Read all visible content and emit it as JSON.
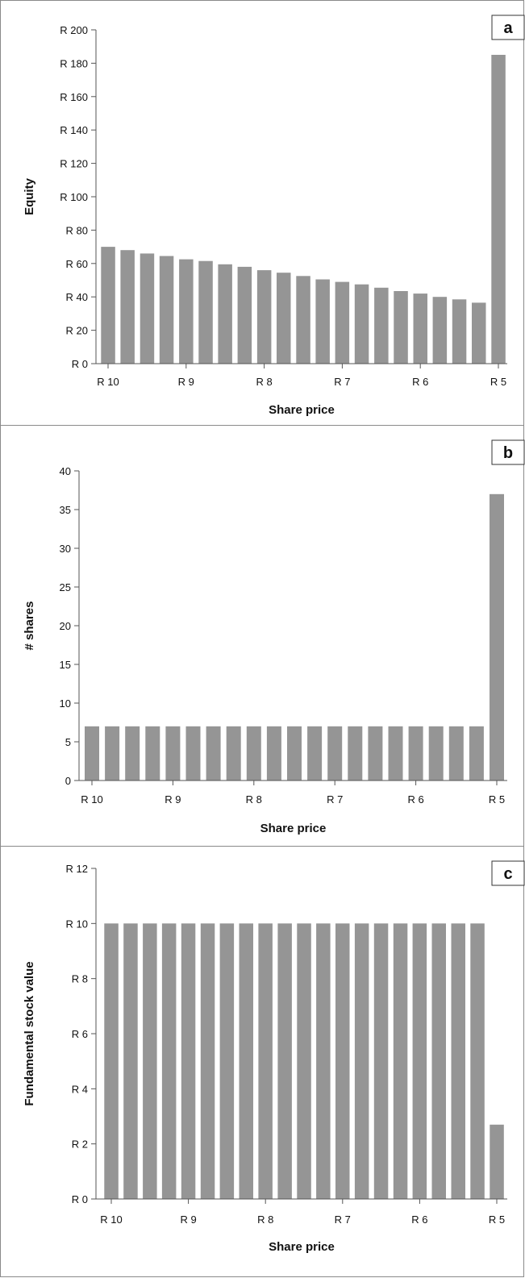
{
  "chart_data": [
    {
      "panel_label": "a",
      "type": "bar",
      "categories": [
        "R 10",
        "R 9.75",
        "R 9.50",
        "R 9.25",
        "R 9",
        "R 8.75",
        "R 8.50",
        "R 8.25",
        "R 8",
        "R 7.75",
        "R 7.50",
        "R 7.25",
        "R 7",
        "R 6.75",
        "R 6.50",
        "R 6.25",
        "R 6",
        "R 5.75",
        "R 5.50",
        "R 5.25",
        "R 5"
      ],
      "values": [
        70,
        68,
        66,
        64.5,
        62.5,
        61.5,
        59.5,
        58,
        56,
        54.5,
        52.5,
        50.5,
        49,
        47.5,
        45.5,
        43.5,
        42,
        40,
        38.5,
        36.5,
        185
      ],
      "x_tick_labels": [
        "R 10",
        "R 9",
        "R 8",
        "R 7",
        "R 6",
        "R 5"
      ],
      "y_tick_labels": [
        "R 0",
        "R 20",
        "R 40",
        "R 60",
        "R 80",
        "R 100",
        "R 120",
        "R 140",
        "R 160",
        "R 180",
        "R 200"
      ],
      "xlabel": "Share price",
      "ylabel": "Equity",
      "ylim": [
        0,
        200
      ],
      "bar_color": "#959595"
    },
    {
      "panel_label": "b",
      "type": "bar",
      "categories": [
        "R 10",
        "R 9.75",
        "R 9.50",
        "R 9.25",
        "R 9",
        "R 8.75",
        "R 8.50",
        "R 8.25",
        "R 8",
        "R 7.75",
        "R 7.50",
        "R 7.25",
        "R 7",
        "R 6.75",
        "R 6.50",
        "R 6.25",
        "R 6",
        "R 5.75",
        "R 5.50",
        "R 5.25",
        "R 5"
      ],
      "values": [
        7,
        7,
        7,
        7,
        7,
        7,
        7,
        7,
        7,
        7,
        7,
        7,
        7,
        7,
        7,
        7,
        7,
        7,
        7,
        7,
        37
      ],
      "x_tick_labels": [
        "R 10",
        "R 9",
        "R 8",
        "R 7",
        "R 6",
        "R 5"
      ],
      "y_tick_labels": [
        "0",
        "5",
        "10",
        "15",
        "20",
        "25",
        "30",
        "35",
        "40"
      ],
      "xlabel": "Share price",
      "ylabel": "# shares",
      "ylim": [
        0,
        40
      ],
      "bar_color": "#959595"
    },
    {
      "panel_label": "c",
      "type": "bar",
      "categories": [
        "R 10",
        "R 9.75",
        "R 9.50",
        "R 9.25",
        "R 9",
        "R 8.75",
        "R 8.50",
        "R 8.25",
        "R 8",
        "R 7.75",
        "R 7.50",
        "R 7.25",
        "R 7",
        "R 6.75",
        "R 6.50",
        "R 6.25",
        "R 6",
        "R 5.75",
        "R 5.50",
        "R 5.25",
        "R 5"
      ],
      "values": [
        10,
        10,
        10,
        10,
        10,
        10,
        10,
        10,
        10,
        10,
        10,
        10,
        10,
        10,
        10,
        10,
        10,
        10,
        10,
        10,
        2.7
      ],
      "x_tick_labels": [
        "R 10",
        "R 9",
        "R 8",
        "R 7",
        "R 6",
        "R 5"
      ],
      "y_tick_labels": [
        "R 0",
        "R 2",
        "R 4",
        "R 6",
        "R 8",
        "R 10",
        "R 12"
      ],
      "xlabel": "Share price",
      "ylabel": "Fundamental stock value",
      "ylim": [
        0,
        12
      ],
      "bar_color": "#959595"
    }
  ]
}
